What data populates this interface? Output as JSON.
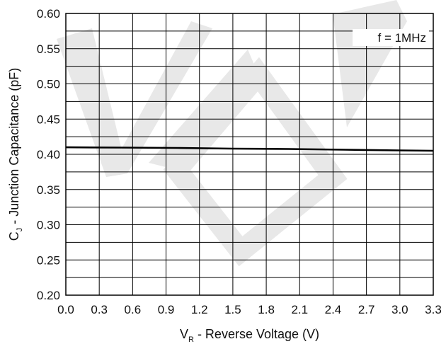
{
  "chart_data": {
    "type": "line",
    "xlabel": {
      "main": "V",
      "sub": "R",
      "rest": " - Reverse Voltage (V)"
    },
    "ylabel": {
      "main": "C",
      "sub": "J",
      "rest": " - Junction Capacitance (pF)"
    },
    "xlim": [
      0.0,
      3.3
    ],
    "ylim": [
      0.2,
      0.6
    ],
    "x_ticks": [
      "0.0",
      "0.3",
      "0.6",
      "0.9",
      "1.2",
      "1.5",
      "1.8",
      "2.1",
      "2.4",
      "2.7",
      "3.0",
      "3.3"
    ],
    "y_ticks": [
      "0.20",
      "0.25",
      "0.30",
      "0.35",
      "0.40",
      "0.45",
      "0.50",
      "0.55",
      "0.60"
    ],
    "grid": true,
    "annotation": "f = 1MHz",
    "series": [
      {
        "x": [
          0.0,
          0.5,
          1.0,
          1.5,
          2.0,
          2.5,
          3.0,
          3.3
        ],
        "y": [
          0.41,
          0.4095,
          0.409,
          0.408,
          0.4075,
          0.4065,
          0.4055,
          0.405
        ]
      }
    ],
    "colors": {
      "line": "#000000",
      "grid": "#000000",
      "watermark": "#e6e6e6"
    }
  }
}
